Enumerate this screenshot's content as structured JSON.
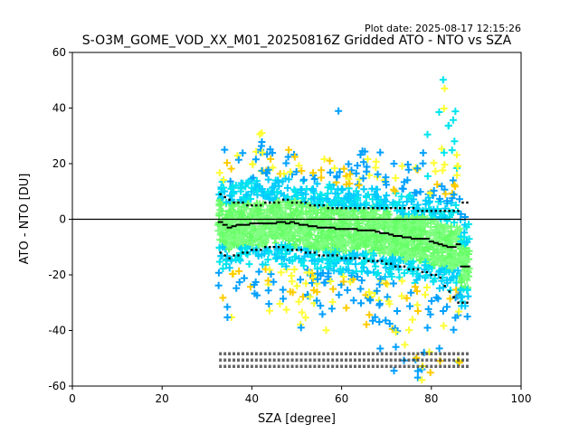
{
  "figure": {
    "plot_date": "Plot date: 2025-08-17 12:15:26"
  },
  "chart_data": {
    "type": "scatter",
    "title": "S-O3M_GOME_VOD_XX_M01_20250816Z Gridded ATO - NTO vs SZA",
    "xlabel": "SZA [degree]",
    "ylabel": "ATO - NTO [DU]",
    "xlim": [
      0,
      100
    ],
    "ylim": [
      -60,
      60
    ],
    "xticks": [
      0,
      20,
      40,
      60,
      80,
      100
    ],
    "yticks": [
      -60,
      -40,
      -20,
      0,
      20,
      40,
      60
    ],
    "grid": false,
    "legend": "none",
    "reference_line": {
      "y": 0,
      "color": "#000000"
    },
    "colors": {
      "points": [
        "#66ff66",
        "#7fff7f",
        "#00e5ee",
        "#00ccff",
        "#00a0ff",
        "#ffff33",
        "#ffcc00"
      ],
      "mean_line": "#000000"
    },
    "sza_bins": [
      33,
      34,
      35,
      36,
      37,
      38,
      39,
      40,
      41,
      42,
      43,
      44,
      45,
      46,
      47,
      48,
      49,
      50,
      51,
      52,
      53,
      54,
      55,
      56,
      57,
      58,
      59,
      60,
      61,
      62,
      63,
      64,
      65,
      66,
      67,
      68,
      69,
      70,
      71,
      72,
      73,
      74,
      75,
      76,
      77,
      78,
      79,
      80,
      81,
      82,
      83,
      84,
      85,
      86,
      87,
      88
    ],
    "series": [
      {
        "role": "mean",
        "values": [
          -1,
          -2,
          -3,
          -2.5,
          -2,
          -2,
          -2,
          -1.5,
          -1.5,
          -1.5,
          -1.5,
          -1.5,
          -1.5,
          -1,
          -1,
          -1.5,
          -1,
          -1.5,
          -2,
          -2,
          -2.5,
          -2.5,
          -3,
          -3,
          -3,
          -3,
          -3.5,
          -3.5,
          -3.5,
          -3.5,
          -3.5,
          -4,
          -4,
          -4,
          -4,
          -4.5,
          -5,
          -5,
          -5.5,
          -6,
          -6,
          -6.5,
          -6.5,
          -7,
          -7,
          -7,
          -7,
          -8,
          -8.5,
          -9,
          -9.5,
          -10,
          -10,
          -9,
          -17,
          -17
        ]
      },
      {
        "role": "mean_plus_std",
        "values": [
          9,
          8,
          7,
          6,
          6,
          6,
          5,
          5,
          5,
          5,
          6,
          6,
          6,
          6,
          7,
          7,
          6,
          6,
          6,
          6,
          5,
          5,
          5,
          5,
          4,
          4,
          4,
          4,
          4,
          4,
          4,
          4,
          4,
          4,
          4,
          4,
          4,
          4,
          4,
          4,
          4,
          4,
          4,
          4,
          3,
          3,
          3,
          3,
          3,
          3,
          3,
          3,
          3,
          3,
          6,
          6
        ]
      },
      {
        "role": "mean_minus_std",
        "values": [
          -12,
          -13,
          -14,
          -13,
          -13,
          -12,
          -12,
          -11,
          -11,
          -11,
          -10,
          -10,
          -10,
          -10,
          -10,
          -11,
          -11,
          -11,
          -11,
          -12,
          -12,
          -12,
          -13,
          -13,
          -13,
          -13,
          -13,
          -14,
          -14,
          -14,
          -14,
          -14,
          -14,
          -15,
          -15,
          -15,
          -15,
          -16,
          -16,
          -17,
          -17,
          -17,
          -18,
          -18,
          -18,
          -19,
          -19,
          -20,
          -20,
          -21,
          -24,
          -26,
          -28,
          -30,
          -30,
          -30
        ]
      }
    ],
    "scatter_envelope": {
      "x_range": [
        33,
        88
      ],
      "description_values": {
        "upper": [
          20,
          25,
          22,
          24,
          26,
          27,
          22,
          26,
          30,
          33,
          25,
          27,
          24,
          25,
          26,
          25,
          24,
          26,
          22,
          23,
          22,
          20,
          22,
          22,
          21,
          20,
          40,
          20,
          21,
          23,
          25,
          27,
          26,
          22,
          23,
          25,
          33,
          25,
          22,
          20,
          23,
          25,
          24,
          23,
          26,
          28,
          34,
          33,
          38,
          45,
          54,
          44,
          40,
          35,
          15,
          10
        ],
        "lower": [
          -28,
          -33,
          -36,
          -30,
          -29,
          -30,
          -31,
          -29,
          -32,
          -30,
          -31,
          -33,
          -29,
          -34,
          -31,
          -33,
          -30,
          -32,
          -40,
          -36,
          -32,
          -33,
          -34,
          -35,
          -41,
          -33,
          -35,
          -30,
          -32,
          -33,
          -36,
          -34,
          -40,
          -39,
          -38,
          -44,
          -48,
          -46,
          -49,
          -55,
          -54,
          -57,
          -58,
          -58,
          -60,
          -60,
          -60,
          -60,
          -60,
          -60,
          -60,
          -60,
          -60,
          -60,
          -40,
          -35
        ]
      }
    }
  }
}
